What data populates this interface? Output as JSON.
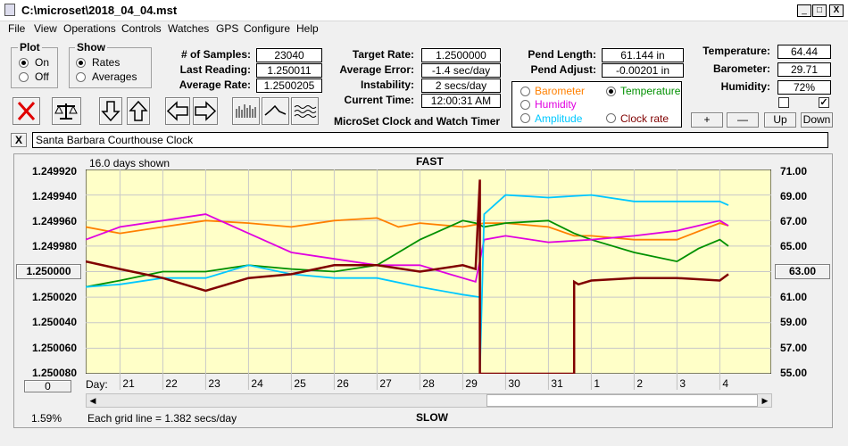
{
  "window": {
    "title": "C:\\microset\\2018_04_04.mst",
    "min": "_",
    "max": "□",
    "close": "X"
  },
  "menu": [
    "File",
    "View",
    "Operations",
    "Controls",
    "Watches",
    "GPS",
    "Configure",
    "Help"
  ],
  "plot_group": {
    "label": "Plot",
    "on": "On",
    "off": "Off",
    "selected": "On"
  },
  "show_group": {
    "label": "Show",
    "rates": "Rates",
    "averages": "Averages",
    "selected": "Rates"
  },
  "stats": {
    "samples_label": "# of Samples:",
    "samples": "23040",
    "last_label": "Last Reading:",
    "last": "1.250011",
    "avg_rate_label": "Average Rate:",
    "avg_rate": "1.2500205",
    "target_label": "Target Rate:",
    "target": "1.2500000",
    "avg_err_label": "Average Error:",
    "avg_err": "-1.4 sec/day",
    "instab_label": "Instability:",
    "instab": "2 secs/day",
    "time_label": "Current Time:",
    "time": "12:00:31 AM",
    "pend_len_label": "Pend Length:",
    "pend_len": "61.144 in",
    "pend_adj_label": "Pend Adjust:",
    "pend_adj": "-0.00201 in",
    "temp_label": "Temperature:",
    "temp": "64.44",
    "baro_label": "Barometer:",
    "baro": "29.71",
    "hum_label": "Humidity:",
    "hum": "72%"
  },
  "app_caption": "MicroSet Clock and Watch Timer",
  "sensor_options": [
    {
      "label": "Barometer",
      "color": "#ff8000",
      "selected": false
    },
    {
      "label": "Temperature",
      "color": "#009000",
      "selected": true
    },
    {
      "label": "Humidity",
      "color": "#e000e0",
      "selected": false
    },
    {
      "label": "Amplitude",
      "color": "#00c8ff",
      "selected": false
    },
    {
      "label": "Clock rate",
      "color": "#800000",
      "selected": false
    }
  ],
  "right_buttons": [
    "+",
    "—",
    "Up",
    "Down"
  ],
  "checkbox_right_checked": true,
  "watch_name": "Santa Barbara Courthouse Clock",
  "close_small": "X",
  "graph": {
    "days_shown": "16.0 days shown",
    "fast": "FAST",
    "slow": "SLOW",
    "grid_note": "Each grid line = 1.382 secs/day",
    "percent": "1.59%",
    "left_button": "1.250000",
    "right_button": "63.00",
    "bottom_button": "0",
    "day_label": "Day:"
  },
  "chart_data": {
    "type": "line",
    "y_left_ticks": [
      "1.249920",
      "1.249940",
      "1.249960",
      "1.249980",
      "1.250000",
      "1.250020",
      "1.250040",
      "1.250060",
      "1.250080"
    ],
    "y_right_ticks": [
      "71.00",
      "69.00",
      "67.00",
      "65.00",
      "63.00",
      "61.00",
      "59.00",
      "57.00",
      "55.00"
    ],
    "x_ticks": [
      "21",
      "22",
      "23",
      "24",
      "25",
      "26",
      "27",
      "28",
      "29",
      "30",
      "31",
      "1",
      "2",
      "3",
      "4"
    ],
    "x_range_days": [
      20.2,
      36.2
    ],
    "y_right_range": [
      55,
      71
    ],
    "series": [
      {
        "name": "Barometer",
        "color": "#ff8000",
        "x": [
          20.2,
          21,
          22,
          23,
          24,
          25,
          26,
          27,
          27.5,
          28,
          29,
          29.5,
          30,
          31,
          31.6,
          32,
          33,
          34,
          35,
          35.2
        ],
        "y": [
          66.5,
          66.0,
          66.5,
          67.0,
          66.8,
          66.5,
          67.0,
          67.2,
          66.5,
          66.8,
          66.5,
          66.8,
          66.8,
          66.5,
          65.8,
          65.8,
          65.5,
          65.5,
          66.8,
          66.6
        ]
      },
      {
        "name": "Temperature",
        "color": "#009000",
        "x": [
          20.2,
          21,
          22,
          23,
          24,
          25,
          26,
          27,
          27.5,
          28,
          29,
          29.3,
          29.5,
          30,
          31,
          31.6,
          32,
          33,
          34,
          34.5,
          35,
          35.2
        ],
        "y": [
          61.8,
          62.3,
          63.0,
          63.0,
          63.5,
          63.2,
          63.0,
          63.5,
          64.5,
          65.5,
          67.0,
          66.8,
          66.5,
          66.8,
          67.0,
          66.0,
          65.5,
          64.5,
          63.8,
          64.8,
          65.5,
          65.0
        ]
      },
      {
        "name": "Humidity",
        "color": "#e000e0",
        "x": [
          20.2,
          21,
          22,
          23,
          24,
          25,
          26,
          27,
          28,
          29,
          29.3,
          29.5,
          30,
          31,
          32,
          33,
          34,
          35,
          35.2
        ],
        "y": [
          65.5,
          66.5,
          67.0,
          67.5,
          66.0,
          64.5,
          64.0,
          63.5,
          63.5,
          62.5,
          62.2,
          65.5,
          65.8,
          65.3,
          65.5,
          65.8,
          66.2,
          67.0,
          66.6
        ]
      },
      {
        "name": "Amplitude",
        "color": "#00c8ff",
        "x": [
          20.2,
          21,
          22,
          23,
          24,
          25,
          26,
          27,
          28,
          29,
          29.4,
          29.4,
          29.5,
          30,
          31,
          32,
          33,
          34,
          35,
          35.2
        ],
        "y": [
          61.8,
          62.0,
          62.5,
          62.5,
          63.5,
          62.8,
          62.5,
          62.5,
          61.8,
          61.2,
          61.0,
          55.0,
          67.5,
          69.0,
          68.8,
          69.0,
          68.5,
          68.5,
          68.5,
          68.2
        ]
      },
      {
        "name": "Clock rate",
        "color": "#800000",
        "x": [
          20.2,
          21,
          22,
          23,
          24,
          25,
          26,
          27,
          28,
          29,
          29.3,
          29.4,
          29.4,
          31.6,
          31.6,
          31.7,
          32,
          33,
          34,
          35,
          35.2
        ],
        "y": [
          63.8,
          63.2,
          62.5,
          61.5,
          62.5,
          62.8,
          63.5,
          63.5,
          63.0,
          63.5,
          63.2,
          70.2,
          55.0,
          55.0,
          62.2,
          62.0,
          62.3,
          62.5,
          62.5,
          62.3,
          62.8
        ]
      }
    ]
  }
}
